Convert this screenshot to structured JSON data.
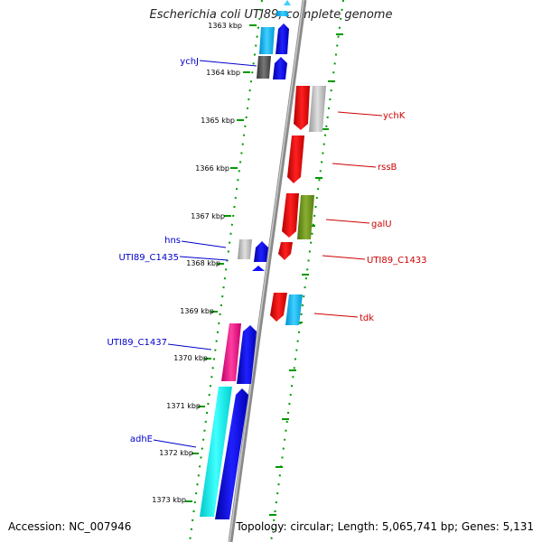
{
  "title": "Escherichia coli UTI89, complete genome",
  "footer": {
    "accession": "Accession: NC_007946",
    "summary": "Topology: circular; Length: 5,065,741 bp; Genes: 5,131"
  },
  "colors": {
    "backbone": "#808080",
    "ticks": "#009900",
    "left_labels": "#0000cc",
    "right_labels": "#cc0000"
  },
  "ruler": [
    {
      "label": "1363 kbp"
    },
    {
      "label": "1364 kbp"
    },
    {
      "label": "1365 kbp"
    },
    {
      "label": "1366 kbp"
    },
    {
      "label": "1367 kbp"
    },
    {
      "label": "1368 kbp"
    },
    {
      "label": "1369 kbp"
    },
    {
      "label": "1370 kbp"
    },
    {
      "label": "1371 kbp"
    },
    {
      "label": "1372 kbp"
    },
    {
      "label": "1373 kbp"
    }
  ],
  "gene_labels": {
    "left": [
      {
        "name": "ychJ"
      },
      {
        "name": "hns"
      },
      {
        "name": "UTI89_C1435"
      },
      {
        "name": "UTI89_C1437"
      },
      {
        "name": "adhE"
      }
    ],
    "right": [
      {
        "name": "ychK"
      },
      {
        "name": "rssB"
      },
      {
        "name": "galU"
      },
      {
        "name": "UTI89_C1433"
      },
      {
        "name": "tdk"
      }
    ]
  }
}
